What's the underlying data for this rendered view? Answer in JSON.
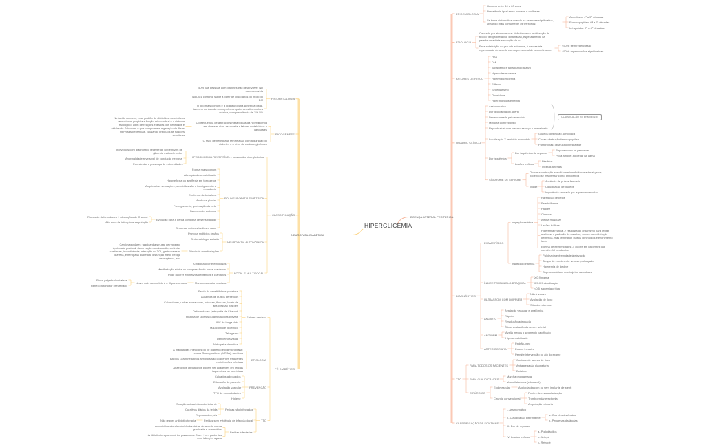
{
  "root": "HIPERGLICEMIA",
  "colors": {
    "right": "#f7b79c",
    "right_main": "#fbc9b5",
    "left": "#fcd27f",
    "left_main": "#fde0a6",
    "text": "#6b6b6b"
  },
  "right_branch": {
    "t": "DOENÇA ARTERIAL PERIFÉRICA",
    "c": [
      {
        "t": "EPIDEMIOLOGIA",
        "c": [
          {
            "t": "Homens entre 40 e 60 anos"
          },
          {
            "t": "Prevalência igual entre homens e mulheres"
          },
          {
            "t": "Se torna sintomática quando há estenose significativa, afetando mais comumente os territórios:",
            "c": [
              {
                "t": "Aortoilíaco: 4ª a 5ª décadas"
              },
              {
                "t": "Femoropoplíteo: 6ª a 7ª décadas"
              },
              {
                "t": "Infrapatelar: 7ª a 8ª décadas"
              }
            ]
          }
        ]
      },
      {
        "t": "ETIOLOGIA",
        "c": [
          {
            "t": "Causada por aterosclerose: deficiência na proliferação de tecido fibroproliferativo, inflamação, espessamento da parede da artéria e redução da luz"
          },
          {
            "t": "Para a definição do grau de estenose, é necessária repercussão de acordo com o percentual de acometimento",
            "c": [
              {
                "t": "<50%: sem repercussão"
              },
              {
                "t": ">50%: repercussões significativas"
              }
            ]
          }
        ]
      },
      {
        "t": "FATORES DE RISCO",
        "c": [
          {
            "t": "HAS"
          },
          {
            "t": "DM"
          },
          {
            "t": "Tabagismo e tabagismo passivo"
          },
          {
            "t": "Hipercolesterolemia"
          },
          {
            "t": "Hipertrigliceridemia"
          },
          {
            "t": "Etilismo"
          },
          {
            "t": "Sedentarismo"
          },
          {
            "t": "Obesidade"
          },
          {
            "t": "Hiper-homocisteinemia"
          }
        ]
      },
      {
        "t": "QUADRO CLÍNICO",
        "group_label": "CLAUDICAÇÃO INTERMITENTE",
        "c": [
          {
            "t": "Assintomático"
          },
          {
            "t": "Dor tipo cãibra ou aperto"
          },
          {
            "t": "Desencadeada pelo exercício"
          },
          {
            "t": "Melhora com repouso"
          },
          {
            "t": "Reproduzível com mesmo esforço e intensidade"
          },
          {
            "t": "Localização X território acometido",
            "c": [
              {
                "t": "Glúteos: obstrução aortoilíaca"
              },
              {
                "t": "Coxas: obstrução femoropoplítea"
              },
              {
                "t": "Panturrilhas: obstrução infrapatelar"
              }
            ]
          },
          {
            "t": "Dor isquêmica",
            "c": [
              {
                "t": "Dor isquêmica de repouso",
                "c": [
                  {
                    "t": "Repouso com pé pendente"
                  },
                  {
                    "t": "Piora à noite, ao deitar na cama"
                  }
                ]
              },
              {
                "t": "Lesões tróficas",
                "c": [
                  {
                    "t": "Pés frios"
                  },
                  {
                    "t": "Úlceras arteriais"
                  }
                ]
              }
            ]
          },
          {
            "t": "SÍNDROME DE LERICHE",
            "c": [
              {
                "t": "Ocorre a obstrução aortoilíaca e insuficiência arterial grave, podendo se manifestar como impotência"
              },
              {
                "t": "Tríade",
                "c": [
                  {
                    "t": "Ausência de pulsos femorais"
                  },
                  {
                    "t": "Claudicação de glúteos"
                  },
                  {
                    "t": "Impotência causada por isquemia vascular"
                  }
                ]
              }
            ]
          }
        ]
      },
      {
        "t": "DIAGNÓSTICO",
        "c": [
          {
            "t": "EXAME FÍSICO",
            "c": [
              {
                "t": "Inspeção estática",
                "c": [
                  {
                    "t": "Rarefação de pelos"
                  },
                  {
                    "t": "Pele brilhante"
                  },
                  {
                    "t": "Palidez"
                  },
                  {
                    "t": "Cianose"
                  },
                  {
                    "t": "Atrofia muscular"
                  },
                  {
                    "t": "Lesões tróficas"
                  },
                  {
                    "t": "Hiperemia reativa -> resposta do organismo para tentar melhorar a perfusão do membro; ocorre vasodilatação periférica, mas tem rubor, pulsos diminuídos e enchimento lento"
                  },
                  {
                    "t": "Edema de extremidades -> ocorre em pacientes que mantêm MI em declive"
                  }
                ]
              },
              {
                "t": "Inspeção dinâmica",
                "c": [
                  {
                    "t": "Palidez da extremidade à elevação"
                  },
                  {
                    "t": "Tempo de enchimento venoso prolongado"
                  },
                  {
                    "t": "Hiperemia de declive"
                  },
                  {
                    "t": "Sopros sistólicos nos trajetos vasculares"
                  }
                ]
              }
            ]
          },
          {
            "t": "ÍNDICE TORNOZELO-BRAQUIAL",
            "c": [
              {
                "t": "≥ 0,9 normal"
              },
              {
                "t": "0,5-0,9 claudicação"
              },
              {
                "t": "<0,5 isquemia crítica"
              }
            ]
          },
          {
            "t": "ULTRASSOM COM DOPPLER",
            "c": [
              {
                "t": "Não invasivo"
              },
              {
                "t": "Avaliação de fluxo"
              },
              {
                "t": "Sítio da estenose"
              }
            ]
          },
          {
            "t": "ANGIOTC",
            "c": [
              {
                "t": "Avaliação vascular e anatômica"
              },
              {
                "t": "Rápido"
              },
              {
                "t": "Resolução adequada"
              },
              {
                "t": "Ótima avaliação da árvore arterial"
              }
            ]
          },
          {
            "t": "ANGIORM",
            "c": [
              {
                "t": "Avalia menos o segmento calcificado"
              },
              {
                "t": "Hipersensibilidade"
              }
            ]
          },
          {
            "t": "ARTERIOGRAFIA",
            "c": [
              {
                "t": "Padrão-ouro"
              },
              {
                "t": "Exame invasivo"
              },
              {
                "t": "Permite intervenção no ato do exame"
              }
            ]
          }
        ]
      },
      {
        "t": "TTO",
        "c": [
          {
            "t": "PARA TODOS OS PACIENTES",
            "c": [
              {
                "t": "Controle de fatores de risco"
              },
              {
                "t": "Antiagregação plaquetária"
              },
              {
                "t": "Estatina"
              }
            ]
          },
          {
            "t": "PARA CLAUDICANTES",
            "c": [
              {
                "t": "Marcha programada"
              },
              {
                "t": "Vasodilatadores (cilostazol)"
              }
            ]
          },
          {
            "t": "CIRÚRGICO",
            "c": [
              {
                "t": "Endovascular",
                "c": [
                  {
                    "t": "Angioplastia com ou sem implante de stent"
                  }
                ]
              },
              {
                "t": "Cirurgia convencional",
                "c": [
                  {
                    "t": "Pontes de revascularização"
                  },
                  {
                    "t": "Tromboendarterectomia"
                  },
                  {
                    "t": "Amputação primária"
                  }
                ]
              }
            ]
          }
        ]
      },
      {
        "t": "CLASSIFICAÇÃO DE FONTAINE",
        "c": [
          {
            "t": "I- Assintomático"
          },
          {
            "t": "II- Claudicação intermitente",
            "c": [
              {
                "t": "a- Grandes distâncias"
              },
              {
                "t": "b- Pequenas distâncias"
              }
            ]
          },
          {
            "t": "III- Dor de repouso"
          },
          {
            "t": "IV- Lesões tróficas",
            "c": [
              {
                "t": "a- Pododáctilos"
              },
              {
                "t": "b- Antepé"
              },
              {
                "t": "c- Retropé"
              }
            ]
          }
        ]
      }
    ]
  },
  "left_branch": {
    "t": "NEUROPATIA DIABÉTICA",
    "c": [
      {
        "t": "FISIOPATOLOGIA",
        "c": [
          {
            "t": "50% das pessoas com diabetes irão desenvolver ND durante a vida"
          },
          {
            "t": "No DM1 costuma surgir a partir de cinco anos do início do DM"
          },
          {
            "t": "O tipo mais comum é a polineuropatia simétrica distal, também conhecida como polineuropatia sensitivo-motora crônica, com prevalência de 2%-5%"
          }
        ]
      },
      {
        "t": "PATOGÊNESE",
        "c": [
          {
            "t": "Consequência de alterações metabólicas da hiperglicemia em diversas vias, associada a fatores metabólicos e vasculares",
            "c": [
              {
                "t": "No tecido nervoso, esse padrão de distúrbios metabólicos associados propicia a função mitocondrial e o sistema fisiológico, além de reações e lesões dos neurônios e células de Schwann, o que compromete a geração de fibras nervosas periféricas, causando prejuízos às funções sensitivas"
              }
            ]
          },
          {
            "t": "O risco de neuropatia tem relação com a duração do diabetes e o nível de controle glicêmico"
          }
        ]
      },
      {
        "t": "CLASSIFICAÇÃO",
        "c": [
          {
            "t": "HIPERGLICEMIA REVERSÍVEL - neuropatia hiperglicêmica",
            "c": [
              {
                "t": "Indivíduos com diagnóstico recente de DM e níveis de glicemia muito elevados"
              },
              {
                "t": "Anormalidade reversível de condução nervosa"
              },
              {
                "t": "Parestesias e presença de extremidades"
              }
            ]
          },
          {
            "t": "POLINEUROPATIA SIMÉTRICA",
            "c": [
              {
                "t": "Forma mais comum"
              },
              {
                "t": "Alteração da sensibilidade"
              },
              {
                "t": "Hiporreflexia ou arreflexia em tornozelos"
              },
              {
                "t": "As primeiras sensações percebidas são o formigamento e dormência"
              },
              {
                "t": "Em forma de bota/luva"
              },
              {
                "t": "Anidrose plantar"
              },
              {
                "t": "Formigamento, queimação da pele"
              },
              {
                "t": "Desconforto ao toque"
              },
              {
                "t": "Evolução para a perda completa de sensibilidade",
                "c": [
                  {
                    "t": "Riscos de deformidades + ulcerações de Charcot"
                  },
                  {
                    "t": "Alto risco de infecção e amputação"
                  }
                ]
              },
              {
                "t": "Sintomas motores tardios e raros"
              }
            ]
          },
          {
            "t": "NEUROPATIA AUTONÔMICA",
            "c": [
              {
                "t": "Provoca múltiplos órgãos"
              },
              {
                "t": "Sintomatologia variada"
              },
              {
                "t": "Principais manifestações",
                "c": [
                  {
                    "t": "Cardiovasculares: taquicardia sinusal de repouso, hipotensão postural, denervação do miocárdio, arritmias cardíacas, incontinência; alteração no TGI, gastroparesia, diarreia, enteropatia diabética; disfunção erétil, bexiga neurogênica, etc."
                  }
                ]
              }
            ]
          },
          {
            "t": "FOCAL E MULTIFOCAL",
            "c": [
              {
                "t": "A maioria ocorre em idosos"
              },
              {
                "t": "Manifestação súbita ou compressão de pares cranianos"
              },
              {
                "t": "Pode ocorrer em nervos periféricos e cranianos"
              },
              {
                "t": "Mononeuropatia craniana",
                "c": [
                  {
                    "t": "Nervo mais acometido é o III par craniano",
                    "c": [
                      {
                        "t": "Ptose palpebral unilateral"
                      },
                      {
                        "t": "Reflexo fotomotor preservado"
                      }
                    ]
                  }
                ]
              }
            ]
          }
        ]
      },
      {
        "t": "PÉ DIABÉTICO",
        "c": [
          {
            "t": "Fatores de risco",
            "c": [
              {
                "t": "Perda da sensibilidade protetora"
              },
              {
                "t": "Ausência de pulsos periféricos"
              },
              {
                "t": "Calosidades, unhas encravadas, micoses, fissuras, locais de alta pressão nos pés"
              },
              {
                "t": "Deformidades (artropatia de Charcot)"
              },
              {
                "t": "História de úlceras ou amputações prévias"
              },
              {
                "t": "IRC de longa data"
              },
              {
                "t": "Mau controle glicêmico"
              },
              {
                "t": "Tabagismo"
              },
              {
                "t": "Deficiência visual"
              },
              {
                "t": "Nefropatia diabética"
              }
            ]
          },
          {
            "t": "ETIOLOGIA",
            "c": [
              {
                "t": "A maioria das infecções do pé diabético é polimicrobiana: cocos Gram-positivos (MRSA), aeróbios"
              },
              {
                "t": "Bacilos Gram-negativos aeróbios são coagentes frequentes em infecções crônicas"
              },
              {
                "t": "Anaeróbios obrigatórios podem ser coagentes em feridas isquêmicas ou necróticas"
              }
            ]
          },
          {
            "t": "PREVENÇÃO",
            "c": [
              {
                "t": "Calçados adequados"
              },
              {
                "t": "Educação do paciente"
              },
              {
                "t": "Avaliação vascular"
              },
              {
                "t": "TTO de comorbidades"
              },
              {
                "t": "Higiene"
              }
            ]
          },
          {
            "t": "TTO",
            "c": [
              {
                "t": "Feridas não infectadas",
                "c": [
                  {
                    "t": "Solução antisséptica não irritante"
                  },
                  {
                    "t": "Curativos diários da ferida"
                  },
                  {
                    "t": "Repouso dos pés"
                  }
                ]
              },
              {
                "t": "Feridas sem evidência de infecção local",
                "c": [
                  {
                    "t": "Não requer antibioticoterapia"
                  }
                ]
              },
              {
                "t": "Feridas infectadas",
                "c": [
                  {
                    "t": "Amoxicilina-clavulanato/clindamicina, de acordo com a gravidade e anaeróbios"
                  },
                  {
                    "t": "Antibioticoterapia empírica para cocos Gram + em pacientes com infecção aguda"
                  }
                ]
              }
            ]
          }
        ]
      }
    ]
  }
}
